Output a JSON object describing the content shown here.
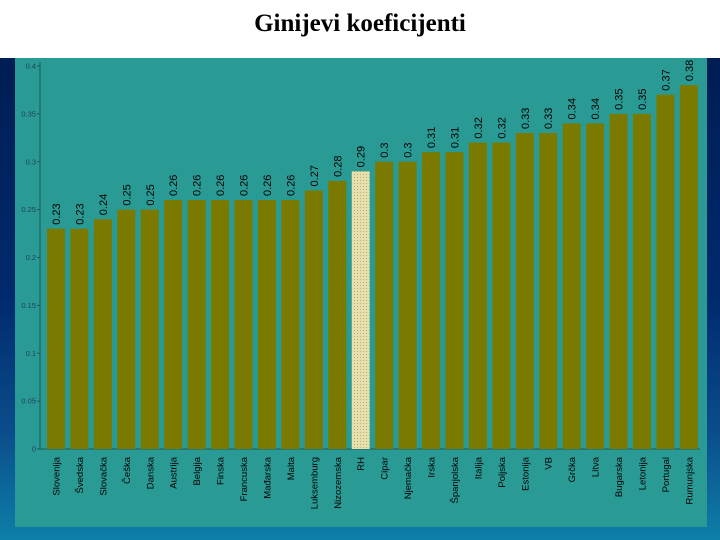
{
  "page": {
    "title": "Ginijevi koeficijenti"
  },
  "colors": {
    "bar": "#7a7a00",
    "highlight": "#e8dfae",
    "panel": "#2a9a94",
    "label_text": "#000000"
  },
  "chart_data": {
    "type": "bar",
    "title": "Ginijevi koeficijenti",
    "categories": [
      "Slovenija",
      "Švedska",
      "Slovačka",
      "Češka",
      "Danska",
      "Austrija",
      "Belgija",
      "Finska",
      "Francuska",
      "Mađarska",
      "Malta",
      "Luksemburg",
      "Nizozemska",
      "RH",
      "Cipar",
      "Njemačka",
      "Irska",
      "Španjolska",
      "Italija",
      "Poljska",
      "Estonija",
      "VB",
      "Grčka",
      "Litva",
      "Bugarska",
      "Letonija",
      "Portugal",
      "Rumunjska"
    ],
    "values": [
      0.23,
      0.23,
      0.24,
      0.25,
      0.25,
      0.26,
      0.26,
      0.26,
      0.26,
      0.26,
      0.26,
      0.27,
      0.28,
      0.29,
      0.3,
      0.3,
      0.31,
      0.31,
      0.32,
      0.32,
      0.33,
      0.33,
      0.34,
      0.34,
      0.35,
      0.35,
      0.37,
      0.38
    ],
    "value_labels": [
      "0.23",
      "0.23",
      "0.24",
      "0.25",
      "0.25",
      "0.26",
      "0.26",
      "0.26",
      "0.26",
      "0.26",
      "0.26",
      "0.27",
      "0.28",
      "0.29",
      "0.3",
      "0.3",
      "0.31",
      "0.31",
      "0.32",
      "0.32",
      "0.33",
      "0.33",
      "0.34",
      "0.34",
      "0.35",
      "0.35",
      "0.37",
      "0.38"
    ],
    "highlight": "RH",
    "yticks": [
      "0",
      "0.05",
      "0.1",
      "0.15",
      "0.2",
      "0.25",
      "0.3",
      "0.35",
      "0.4"
    ],
    "ylim": [
      0,
      0.4
    ],
    "xlabel": "",
    "ylabel": "",
    "grid": false,
    "legend": "none"
  }
}
